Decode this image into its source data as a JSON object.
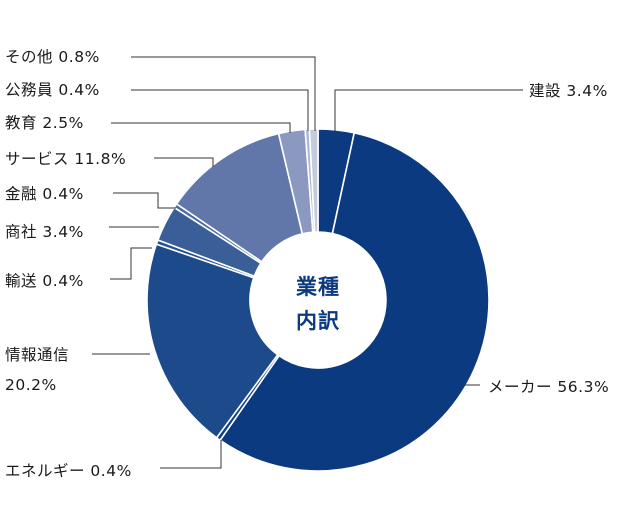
{
  "chart_data": {
    "type": "pie",
    "title": "",
    "center_label": [
      "業種",
      "内訳"
    ],
    "categories": [
      "建設",
      "メーカー",
      "エネルギー",
      "情報通信",
      "輸送",
      "商社",
      "金融",
      "サービス",
      "教育",
      "公務員",
      "その他"
    ],
    "values": [
      3.4,
      56.3,
      0.4,
      20.2,
      0.4,
      3.4,
      0.4,
      11.8,
      2.5,
      0.4,
      0.8
    ],
    "labels": [
      [
        "建設 3.4%"
      ],
      [
        "メーカー 56.3%"
      ],
      [
        "エネルギー 0.4%"
      ],
      [
        "情報通信",
        "20.2%"
      ],
      [
        "輸送 0.4%"
      ],
      [
        "商社 3.4%"
      ],
      [
        "金融 0.4%"
      ],
      [
        "サービス 11.8%"
      ],
      [
        "教育 2.5%"
      ],
      [
        "公務員 0.4%"
      ],
      [
        "その他 0.8%"
      ]
    ],
    "colors": [
      "#0b3a80",
      "#0b3a80",
      "#0d3f85",
      "#1c4a8a",
      "#24508e",
      "#3a5e98",
      "#4a68a0",
      "#6277a9",
      "#8b99c0",
      "#aeb7d2",
      "#c4ccdc"
    ],
    "start": "12 o'clock",
    "direction": "clockwise",
    "legend": "none (labels with leader lines)"
  }
}
